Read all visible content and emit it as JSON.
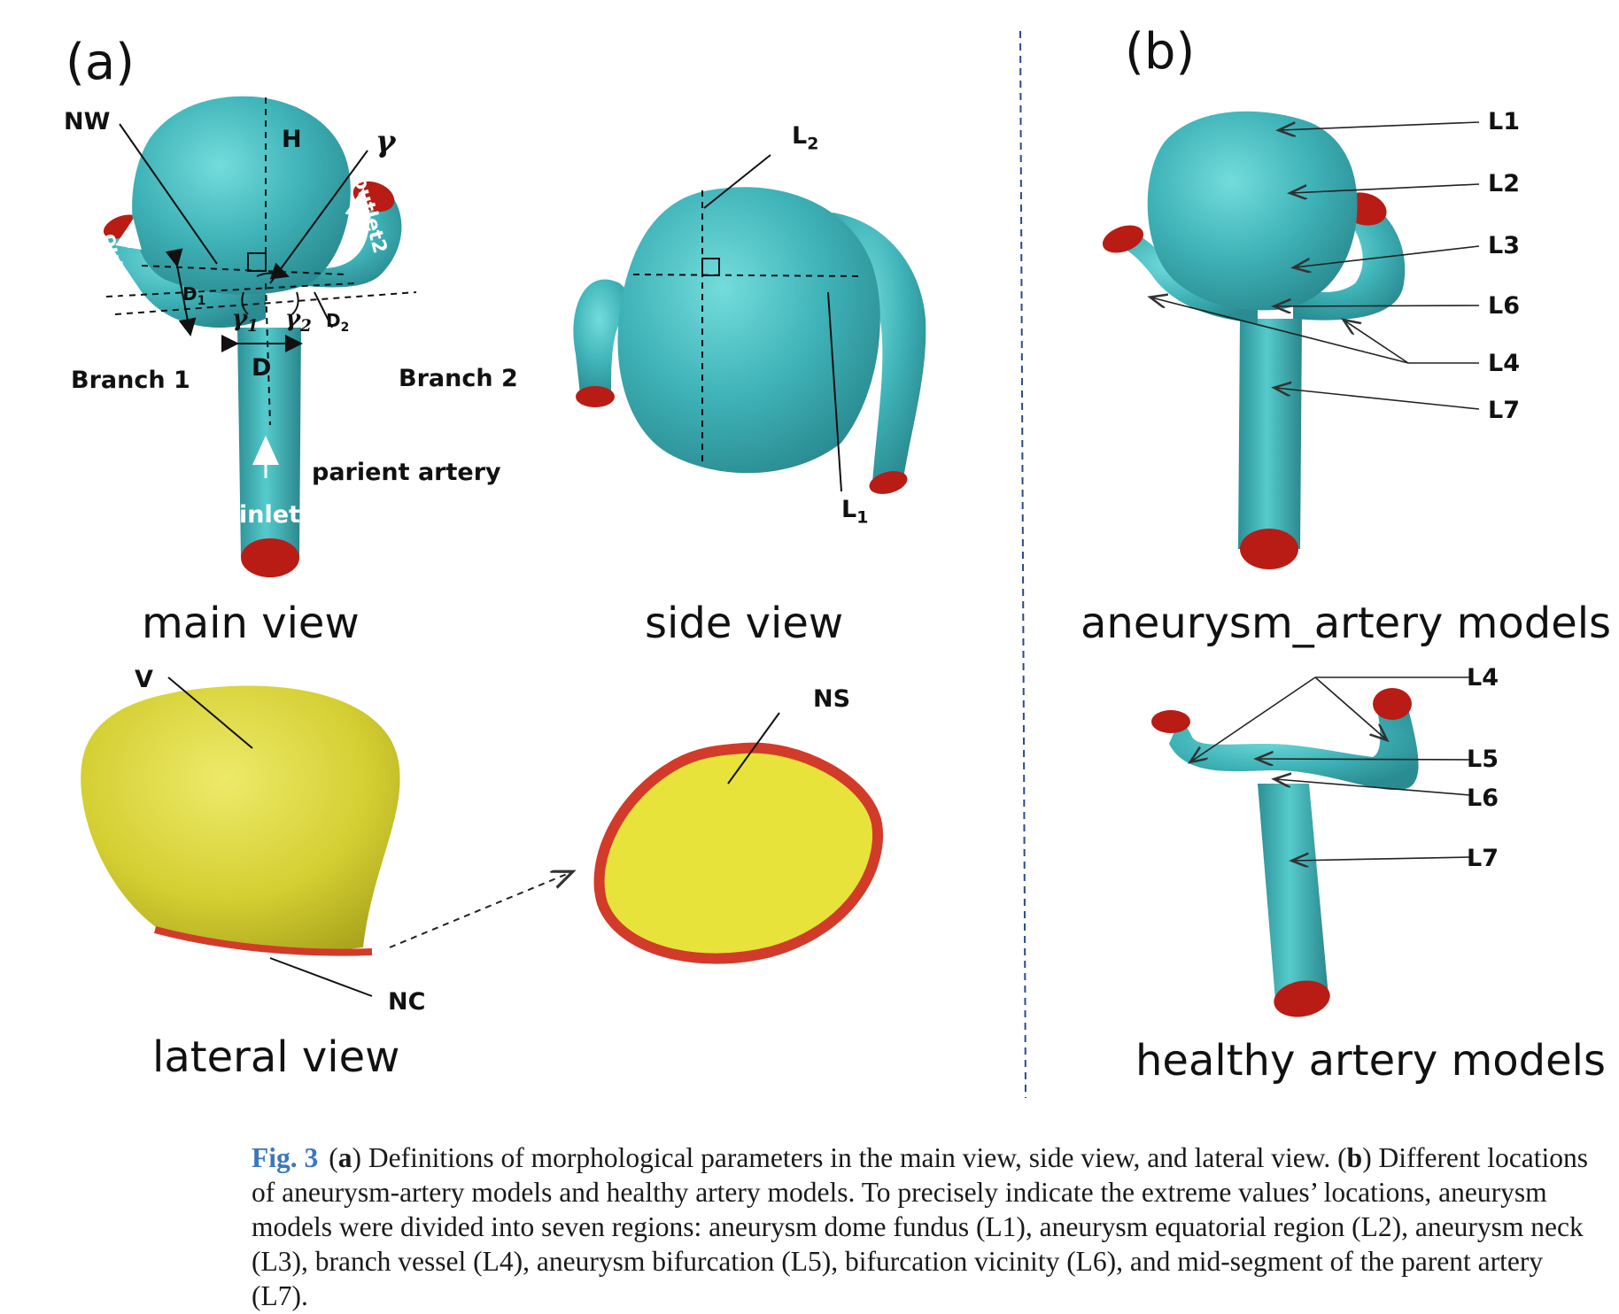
{
  "panel_labels": {
    "a": "(a)",
    "b": "(b)"
  },
  "main_view": {
    "title": "main view",
    "labels": {
      "nw": "NW",
      "h": "H",
      "gamma": "γ",
      "outlet1": "outlet1",
      "outlet2": "outlet2",
      "d1": "D",
      "d1_sub": "1",
      "d2": "D",
      "d2_sub": "2",
      "gamma1": "γ",
      "gamma1_sub": "1",
      "gamma2": "γ",
      "gamma2_sub": "2",
      "d": "D",
      "branch1": "Branch 1",
      "branch2": "Branch 2",
      "parient_artery": "parient artery",
      "inlet": "inlet"
    }
  },
  "side_view": {
    "title": "side view",
    "labels": {
      "l2": "L",
      "l2_sub": "2",
      "l1": "L",
      "l1_sub": "1"
    }
  },
  "lateral_view": {
    "title": "lateral view",
    "labels": {
      "v": "V",
      "ns": "NS",
      "nc": "NC"
    }
  },
  "aneurysm_models": {
    "title": "aneurysm_artery models",
    "labels": [
      "L1",
      "L2",
      "L3",
      "L6",
      "L4",
      "L7"
    ]
  },
  "healthy_models": {
    "title": "healthy artery models",
    "labels": [
      "L4",
      "L5",
      "L6",
      "L7"
    ]
  },
  "caption": {
    "fig": "Fig. 3",
    "open_a": "(",
    "a": "a",
    "text1": ") Definitions of morphological parameters in the main view, side view, and lateral view. (",
    "b": "b",
    "text2": ") Different locations of aneurysm-artery models and healthy artery models. To precisely indicate the extreme values’ locations, aneurysm models were divided into seven regions: aneurysm dome fundus (L1), aneurysm equatorial region (L2), aneurysm neck (L3), branch vessel (L4), aneurysm bifurcation (L5), bifurcation vicinity (L6), and mid-segment of the parent artery (L7)."
  },
  "colors": {
    "vessel": "#3fb5bb",
    "vessel_highlight": "#6fd8d8",
    "outlet": "#b81c14",
    "sac_yellow": "#d9d43a",
    "neck_red": "#d23b2a",
    "divider": "#2b4a8a",
    "caption_fig": "#3b78b9"
  }
}
